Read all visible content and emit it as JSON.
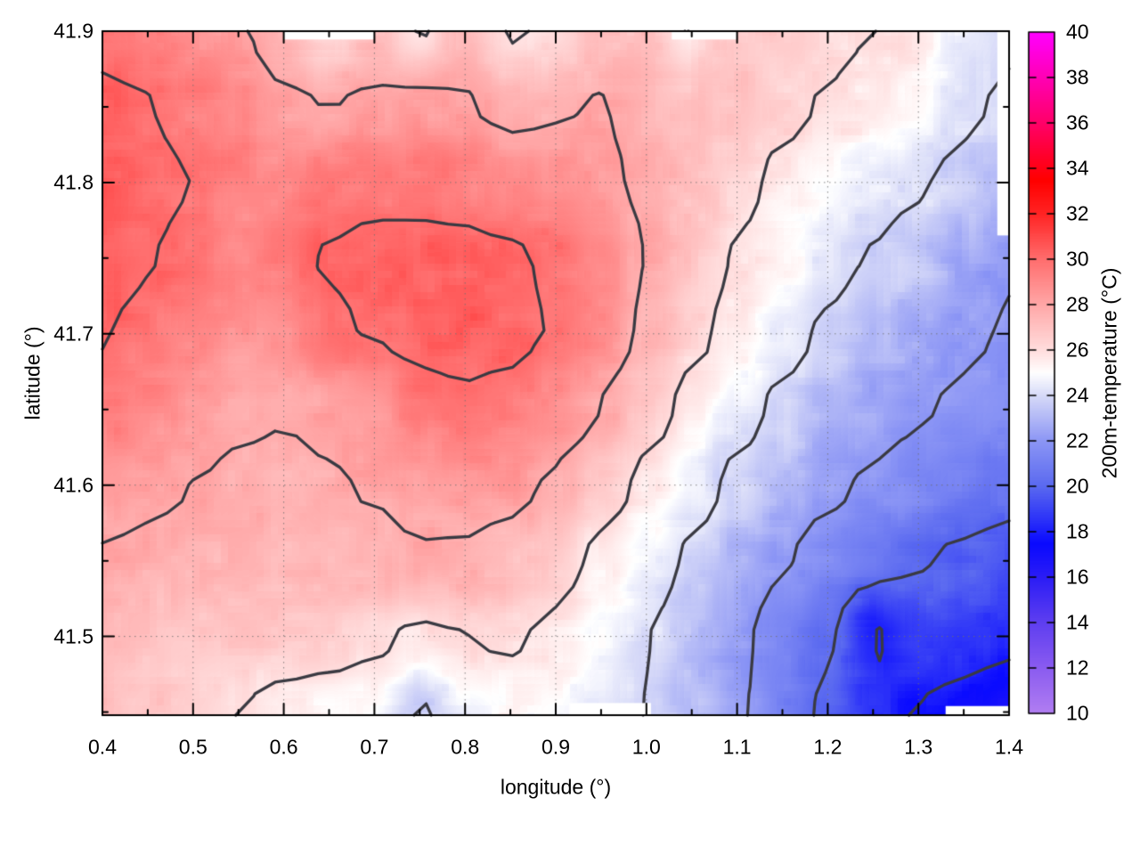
{
  "axes": {
    "x": {
      "label": "longitude (°)",
      "tick_labels": [
        "0.4",
        "0.5",
        "0.6",
        "0.7",
        "0.8",
        "0.9",
        "1.0",
        "1.1",
        "1.2",
        "1.3",
        "1.4"
      ],
      "tick_values": [
        0.4,
        0.5,
        0.6,
        0.7,
        0.8,
        0.9,
        1.0,
        1.1,
        1.2,
        1.3,
        1.4
      ],
      "minor_ticks": [
        0.45,
        0.55,
        0.65,
        0.75,
        0.85,
        0.95,
        1.05,
        1.15,
        1.25,
        1.35
      ]
    },
    "y": {
      "label": "latitude (°)",
      "tick_labels": [
        "41.9",
        "41.8",
        "41.7",
        "41.6",
        "41.5"
      ],
      "tick_values": [
        41.9,
        41.8,
        41.7,
        41.6,
        41.5
      ],
      "minor_ticks": [
        41.45,
        41.55,
        41.65,
        41.75,
        41.85
      ]
    },
    "colorbar": {
      "label": "200m-temperature (°C)",
      "tick_labels": [
        "40",
        "38",
        "36",
        "34",
        "32",
        "30",
        "28",
        "26",
        "24",
        "22",
        "20",
        "18",
        "16",
        "14",
        "12",
        "10"
      ],
      "tick_values": [
        40,
        38,
        36,
        34,
        32,
        30,
        28,
        26,
        24,
        22,
        20,
        18,
        16,
        14,
        12,
        10
      ]
    }
  },
  "chart_data": {
    "type": "heatmap",
    "xlabel": "longitude (°)",
    "ylabel": "latitude (°)",
    "cblabel": "200m-temperature (°C)",
    "x_range": [
      0.4,
      1.4
    ],
    "y_range": [
      41.448,
      41.9
    ],
    "cb_range": [
      10,
      40
    ],
    "grid": true,
    "x": [
      0.4,
      0.45,
      0.5,
      0.55,
      0.6,
      0.65,
      0.7,
      0.75,
      0.8,
      0.85,
      0.9,
      0.95,
      1.0,
      1.05,
      1.1,
      1.15,
      1.2,
      1.25,
      1.3,
      1.35,
      1.4
    ],
    "y": [
      41.9,
      41.85,
      41.8,
      41.75,
      41.7,
      41.65,
      41.6,
      41.55,
      41.5,
      41.45
    ],
    "values": [
      [
        29.6,
        29.2,
        28.7,
        28.2,
        27.1,
        25.9,
        27.0,
        25.8,
        27.4,
        25.8,
        26.3,
        27.1,
        27.3,
        25.9,
        26.8,
        26.6,
        26.3,
        26.0,
        25.7,
        24.6,
        24.2
      ],
      [
        30.3,
        30.1,
        29.5,
        29.0,
        28.3,
        28.0,
        28.3,
        28.5,
        28.1,
        27.6,
        27.9,
        28.1,
        27.6,
        27.2,
        26.8,
        26.3,
        25.9,
        25.5,
        24.9,
        24.2,
        23.8
      ],
      [
        30.6,
        30.3,
        30.0,
        29.3,
        29.2,
        29.5,
        29.7,
        29.6,
        29.4,
        29.0,
        28.6,
        28.2,
        27.8,
        27.2,
        26.4,
        25.7,
        25.1,
        24.6,
        24.1,
        23.7,
        23.3
      ],
      [
        30.5,
        30.1,
        29.6,
        29.1,
        29.6,
        30.1,
        30.3,
        30.4,
        30.4,
        30.2,
        29.8,
        29.0,
        28.0,
        26.9,
        25.9,
        25.1,
        24.4,
        23.9,
        23.4,
        22.6,
        22.1
      ],
      [
        30.1,
        29.6,
        29.1,
        28.7,
        28.9,
        29.8,
        30.1,
        30.3,
        30.4,
        30.3,
        29.9,
        28.9,
        27.7,
        26.4,
        25.4,
        24.5,
        23.8,
        23.2,
        22.8,
        22.2,
        21.9
      ],
      [
        29.3,
        28.9,
        28.5,
        28.2,
        28.1,
        28.3,
        28.6,
        29.6,
        29.8,
        29.6,
        28.9,
        28.0,
        26.7,
        25.5,
        24.5,
        23.7,
        23.1,
        22.6,
        22.1,
        21.8,
        21.5
      ],
      [
        28.6,
        28.3,
        28.0,
        27.8,
        27.6,
        27.9,
        28.1,
        28.4,
        28.6,
        28.4,
        27.8,
        26.8,
        25.6,
        24.6,
        23.7,
        23.0,
        22.3,
        21.8,
        21.4,
        21.0,
        20.6
      ],
      [
        27.9,
        27.7,
        27.5,
        27.4,
        27.3,
        27.5,
        27.6,
        27.9,
        27.8,
        27.4,
        26.6,
        25.6,
        24.6,
        23.8,
        22.9,
        22.1,
        21.3,
        20.6,
        20.1,
        19.7,
        19.3
      ],
      [
        27.5,
        27.2,
        27.0,
        26.9,
        26.8,
        26.7,
        26.3,
        25.7,
        26.0,
        26.2,
        25.7,
        24.9,
        24.1,
        23.2,
        22.3,
        21.3,
        20.2,
        17.8,
        19.0,
        18.6,
        18.3
      ],
      [
        27.1,
        26.8,
        26.5,
        26.0,
        25.5,
        25.2,
        25.0,
        23.8,
        24.8,
        25.1,
        24.9,
        24.5,
        24.0,
        23.2,
        22.2,
        21.0,
        19.7,
        18.4,
        17.9,
        17.5,
        17.1
      ]
    ],
    "contour_levels": [
      18,
      20,
      22,
      24,
      26,
      28,
      30
    ],
    "palette": [
      {
        "v": 10,
        "c": "#b27ef2"
      },
      {
        "v": 12,
        "c": "#8b5cf0"
      },
      {
        "v": 14,
        "c": "#5f3ff0"
      },
      {
        "v": 16,
        "c": "#2c1df6"
      },
      {
        "v": 17.5,
        "c": "#0a0aff"
      },
      {
        "v": 20,
        "c": "#5a69f0"
      },
      {
        "v": 22,
        "c": "#8c96f5"
      },
      {
        "v": 24,
        "c": "#d7daf8"
      },
      {
        "v": 25,
        "c": "#ffffff"
      },
      {
        "v": 26,
        "c": "#ffdede"
      },
      {
        "v": 28,
        "c": "#ffa8a8"
      },
      {
        "v": 30,
        "c": "#ff6e6e"
      },
      {
        "v": 32,
        "c": "#ff2424"
      },
      {
        "v": 33.5,
        "c": "#ff0000"
      },
      {
        "v": 36,
        "c": "#ff0068"
      },
      {
        "v": 38,
        "c": "#ff00b4"
      },
      {
        "v": 40,
        "c": "#ff00ff"
      }
    ],
    "missing_data_patches": [
      {
        "x0": 1.387,
        "x1": 1.4,
        "y0": 41.765,
        "y1": 41.9
      },
      {
        "x0": 0.915,
        "x1": 1.005,
        "y0": 41.448,
        "y1": 41.456
      },
      {
        "x0": 1.33,
        "x1": 1.4,
        "y0": 41.448,
        "y1": 41.454
      },
      {
        "x0": 0.6,
        "x1": 0.7,
        "y0": 41.8945,
        "y1": 41.9
      },
      {
        "x0": 1.028,
        "x1": 1.1,
        "y0": 41.8945,
        "y1": 41.9
      }
    ]
  },
  "colors": {
    "background": "#ffffff",
    "contour": "#3a3a42",
    "border": "#000000",
    "tick": "#000000",
    "label": "#000000",
    "gridline": "#808080"
  }
}
